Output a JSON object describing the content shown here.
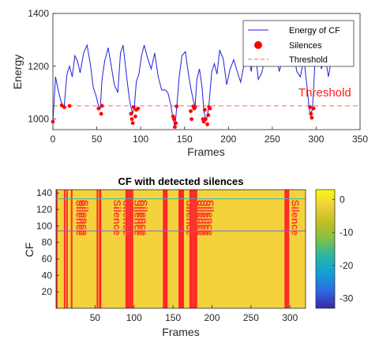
{
  "chart_data": [
    {
      "type": "line",
      "title": "",
      "xlabel": "Frames",
      "ylabel": "Energy",
      "xlim": [
        0,
        350
      ],
      "ylim": [
        960,
        1400
      ],
      "xticks": [
        0,
        50,
        100,
        150,
        200,
        250,
        300,
        350
      ],
      "yticks": [
        1000,
        1200,
        1400
      ],
      "grid": false,
      "legend_position": "top-right",
      "legend": [
        "Energy of CF",
        "Silences",
        "Threshold"
      ],
      "annotation": "Threshold",
      "threshold": 1050,
      "colors": {
        "energy": "#1f1fe0",
        "silences": "#ff0000",
        "threshold": "#ff6666"
      },
      "series": [
        {
          "name": "Energy of CF",
          "x": [
            0,
            3,
            6,
            9,
            11,
            13,
            16,
            19,
            22,
            25,
            28,
            31,
            35,
            39,
            43,
            46,
            49,
            52,
            54,
            56,
            59,
            63,
            67,
            70,
            74,
            77,
            80,
            84,
            87,
            89,
            91,
            93,
            95,
            98,
            101,
            104,
            108,
            112,
            116,
            120,
            124,
            128,
            131,
            134,
            137,
            139,
            141,
            144,
            147,
            151,
            154,
            157,
            160,
            162,
            164,
            167,
            170,
            172,
            174,
            176,
            178,
            181,
            184,
            187,
            190,
            194,
            198,
            202,
            206,
            210,
            214,
            218,
            222,
            226,
            230,
            234,
            238,
            242,
            246,
            250,
            254,
            258,
            262,
            266,
            270,
            274,
            278,
            282,
            286,
            290,
            292,
            294,
            296,
            299,
            302,
            306,
            310,
            314,
            318,
            321
          ],
          "y": [
            990,
            1160,
            1110,
            1070,
            1050,
            1052,
            1170,
            1200,
            1160,
            1240,
            1220,
            1175,
            1250,
            1280,
            1200,
            1120,
            1090,
            1050,
            1040,
            1150,
            1220,
            1270,
            1190,
            1130,
            1100,
            1250,
            1280,
            1160,
            1080,
            1045,
            1020,
            1055,
            1140,
            1170,
            1240,
            1280,
            1230,
            1190,
            1250,
            1160,
            1110,
            1110,
            1100,
            1060,
            1000,
            970,
            1040,
            1160,
            1240,
            1255,
            1180,
            1120,
            1070,
            1048,
            1150,
            1190,
            1120,
            1030,
            1000,
            1010,
            1060,
            1180,
            1210,
            1170,
            1260,
            1230,
            1130,
            1190,
            1225,
            1180,
            1140,
            1210,
            1250,
            1180,
            1280,
            1150,
            1175,
            1235,
            1210,
            1240,
            1250,
            1180,
            1230,
            1270,
            1200,
            1250,
            1180,
            1160,
            1230,
            1110,
            1040,
            1010,
            1050,
            1240,
            1270,
            1190,
            1240,
            1160,
            1240,
            1200
          ]
        },
        {
          "name": "Silences",
          "x": [
            0,
            10,
            13,
            19,
            52,
            55,
            56,
            89,
            90,
            91,
            92,
            94,
            95,
            97,
            137,
            138,
            139,
            140,
            141,
            157,
            158,
            160,
            161,
            162,
            171,
            172,
            173,
            174,
            176,
            177,
            178,
            179,
            293,
            294,
            295,
            297
          ],
          "y": [
            990,
            1052,
            1045,
            1050,
            1040,
            1020,
            1050,
            1020,
            1000,
            985,
            1045,
            1010,
            1035,
            1040,
            1010,
            1000,
            970,
            985,
            1048,
            1030,
            1000,
            1048,
            1040,
            1045,
            1000,
            990,
            1035,
            1000,
            980,
            1015,
            1045,
            1040,
            1045,
            1020,
            1005,
            1040
          ]
        }
      ]
    },
    {
      "type": "heatmap",
      "title": "CF with detected silences",
      "xlabel": "Frames",
      "ylabel": "CF",
      "xlim": [
        0,
        320
      ],
      "ylim": [
        0,
        144
      ],
      "xticks": [
        50,
        100,
        150,
        200,
        250,
        300
      ],
      "yticks": [
        20,
        40,
        60,
        80,
        100,
        120,
        140
      ],
      "colorbar_ticks": [
        0,
        -10,
        -20,
        -30
      ],
      "colorbar_range": [
        -33,
        3
      ],
      "horizontal_lines": [
        {
          "y": 94,
          "color": "#6a6adf"
        },
        {
          "y": 133,
          "color": "#3cb9a6"
        }
      ],
      "silence_frames": [
        0,
        10,
        13,
        19,
        52,
        55,
        56,
        89,
        90,
        91,
        92,
        94,
        95,
        97,
        137,
        138,
        139,
        140,
        141,
        157,
        158,
        160,
        161,
        162,
        171,
        172,
        173,
        174,
        176,
        177,
        178,
        179,
        293,
        294,
        295,
        297
      ],
      "silence_label": "Silence",
      "silence_label_groups": [
        {
          "xs": [
            22,
            25,
            28
          ]
        },
        {
          "xs": [
            70
          ]
        },
        {
          "xs": [
            82,
            86
          ]
        },
        {
          "xs": [
            96,
            100,
            104
          ]
        },
        {
          "xs": [
            163
          ]
        },
        {
          "xs": [
            169,
            173,
            177,
            181,
            185,
            189
          ]
        },
        {
          "xs": [
            298
          ]
        }
      ],
      "background_color": "#f3d23c",
      "stripe_color": "#ff2828"
    }
  ]
}
